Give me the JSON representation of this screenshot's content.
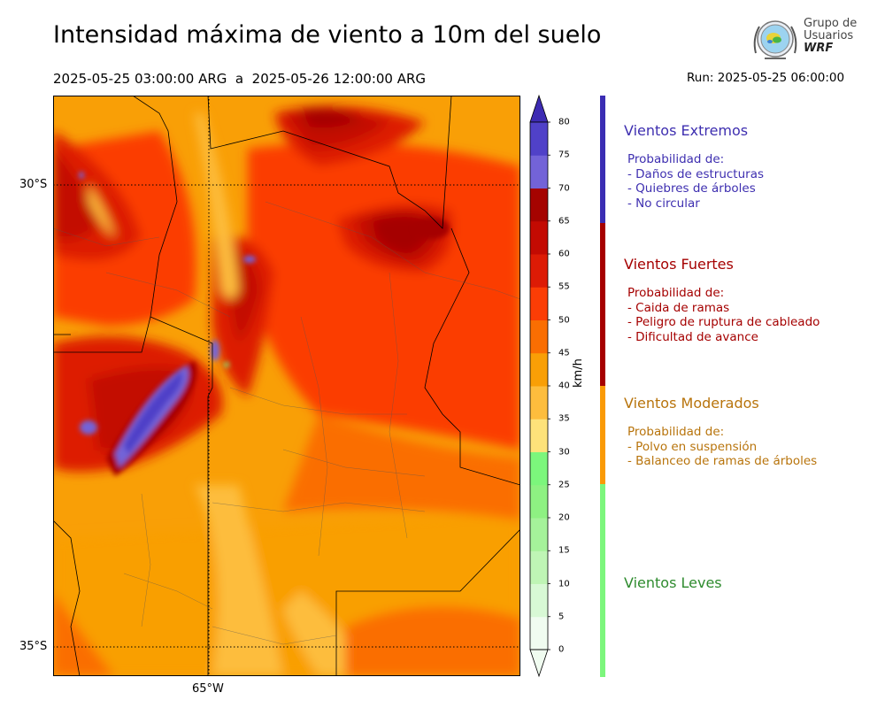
{
  "header": {
    "title": "Intensidad máxima de viento a 10m del suelo",
    "period": "2025-05-25 03:00:00 ARG  a  2025-05-26 12:00:00 ARG",
    "run": "Run: 2025-05-25 06:00:00"
  },
  "logo": {
    "line1": "Grupo de",
    "line2": "Usuarios",
    "line3": "WRF"
  },
  "map": {
    "lat_labels": [
      "30°S",
      "35°S"
    ],
    "lon_labels": [
      "65°W"
    ],
    "colors": {
      "c27": "#fde27a",
      "c32": "#fdbd3d",
      "c37": "#f99f06",
      "c42": "#fa6e02",
      "c47": "#fb3d05",
      "c52": "#dd1b05",
      "c57": "#c30a02",
      "c62": "#a50300",
      "c67": "#7363d8",
      "c72": "#5041c8",
      "green": "#7cf67c"
    }
  },
  "colorbar": {
    "unit": "km/h",
    "ticks": [
      "0",
      "5",
      "10",
      "15",
      "20",
      "25",
      "30",
      "35",
      "40",
      "45",
      "50",
      "55",
      "60",
      "65",
      "70",
      "75",
      "80"
    ],
    "colors": [
      "#f0fcf0",
      "#d8f9d5",
      "#bff5b5",
      "#a5f29a",
      "#8ef182",
      "#7cf67c",
      "#fde27a",
      "#fdbd3d",
      "#f99f06",
      "#fa6e02",
      "#fb3d05",
      "#dd1b05",
      "#c30a02",
      "#a50300",
      "#7363d8",
      "#5041c8",
      "#3d2bb3"
    ],
    "min_value": 0,
    "max_value": 80
  },
  "categories": [
    {
      "title": "Vientos Extremos",
      "color": "#3e2fb0",
      "lines": [
        "Probabilidad de:",
        "- Daños de estructuras",
        "- Quiebres de árboles",
        "- No circular"
      ]
    },
    {
      "title": "Vientos Fuertes",
      "color": "#a50000",
      "lines": [
        "Probabilidad de:",
        "- Caida de ramas",
        "- Peligro de ruptura de cableado",
        "- Dificultad de avance"
      ]
    },
    {
      "title": "Vientos Moderados",
      "color": "#b8740c",
      "lines": [
        "Probabilidad de:",
        "- Polvo en suspensión",
        "- Balanceo de ramas de árboles"
      ]
    },
    {
      "title": "Vientos Leves",
      "color": "#2e8b2e",
      "lines": []
    }
  ],
  "category_bars": [
    "#3b2db3",
    "#a60000",
    "#fa9a06",
    "#7cf67c"
  ]
}
